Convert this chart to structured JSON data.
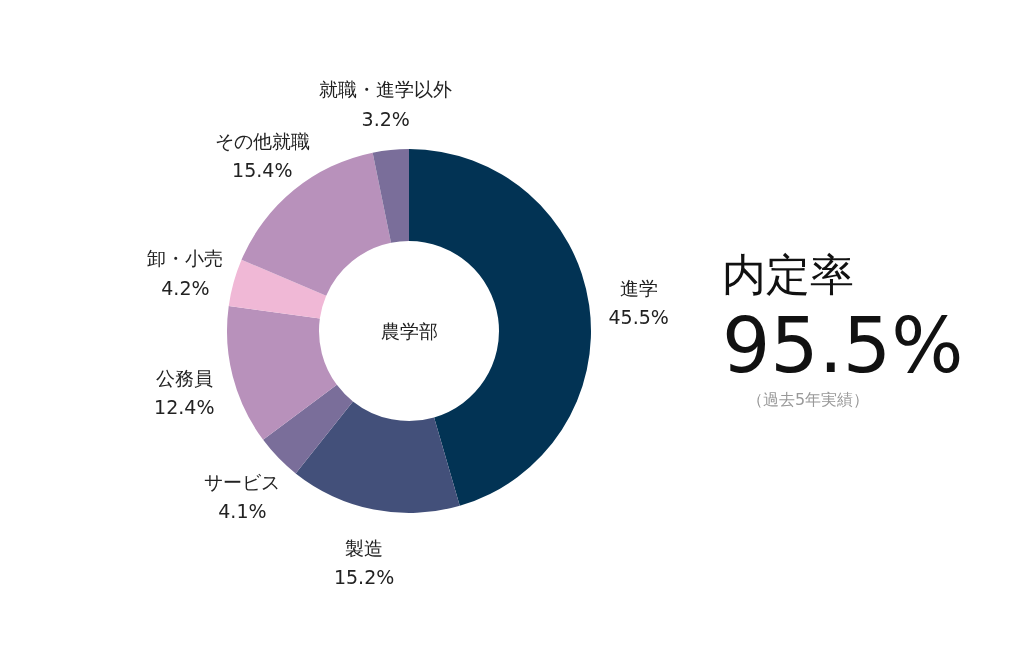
{
  "chart_data": {
    "type": "donut",
    "title": "農学部",
    "categories": [
      "進学",
      "製造",
      "サービス",
      "公務員",
      "卸・小売",
      "その他就職",
      "就職・進学以外"
    ],
    "values": [
      45.5,
      15.2,
      4.1,
      12.4,
      4.2,
      15.4,
      3.2
    ],
    "value_labels": [
      "45.5%",
      "15.2%",
      "4.1%",
      "12.4%",
      "4.2%",
      "15.4%",
      "3.2%"
    ],
    "colors": [
      "#023354",
      "#43507a",
      "#7a6e9a",
      "#b891bb",
      "#f0b8d6",
      "#b891bb",
      "#7a6e9a"
    ],
    "annotations": [
      "内定率",
      "95.5%",
      "（過去5年実績）"
    ]
  }
}
